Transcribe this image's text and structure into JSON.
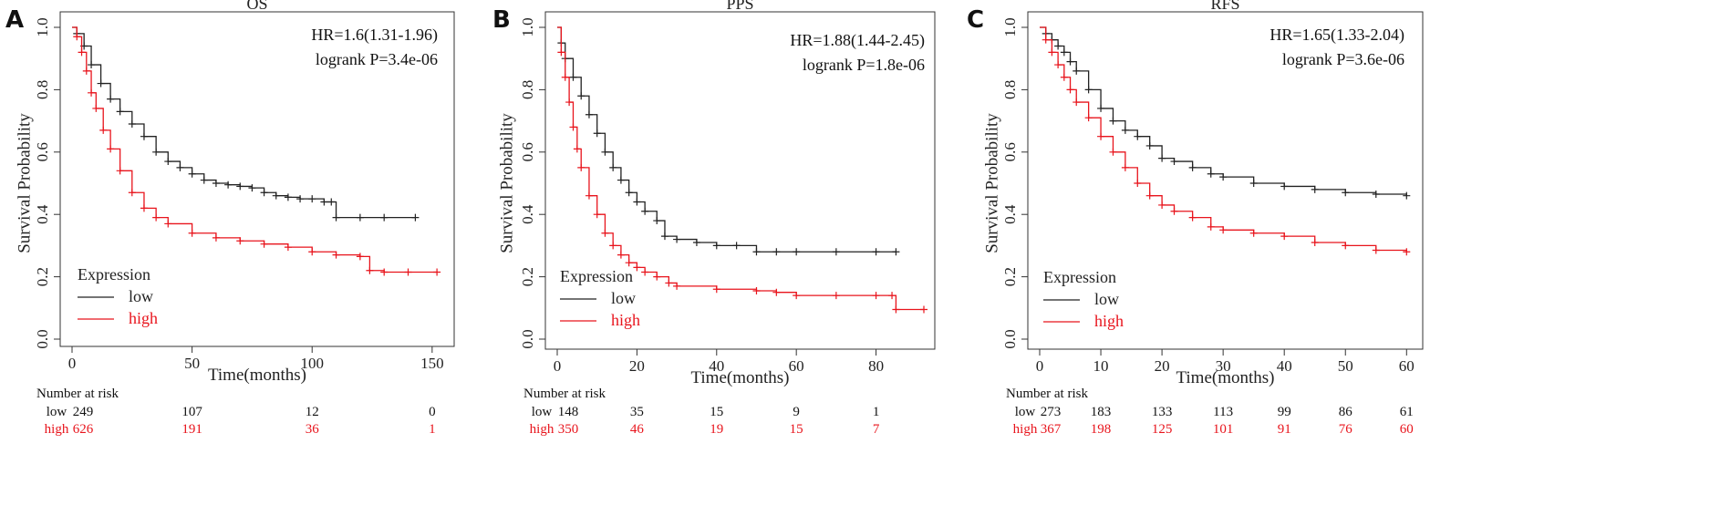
{
  "chart_data": [
    {
      "type": "line",
      "panel": "A",
      "title": "OS",
      "xlabel": "Time(months)",
      "ylabel": "Survival Probability",
      "xlim": [
        0,
        155
      ],
      "ylim": [
        0,
        1
      ],
      "xticks": [
        0,
        50,
        100,
        150
      ],
      "yticks": [
        0.0,
        0.2,
        0.4,
        0.6,
        0.8,
        1.0
      ],
      "ytick_labels": [
        "0.0",
        "0.2",
        "0.4",
        "0.6",
        "0.8",
        "1.0"
      ],
      "hr": "HR=1.6(1.31-1.96)",
      "logrank": "logrank P=3.4e-06",
      "legend_title": "Expression",
      "legend_position": "bottom-left",
      "series": [
        {
          "name": "low",
          "color": "#222222",
          "x": [
            0,
            2,
            5,
            8,
            12,
            16,
            20,
            25,
            30,
            35,
            40,
            45,
            50,
            55,
            60,
            65,
            70,
            75,
            80,
            85,
            90,
            95,
            100,
            105,
            108,
            110,
            120,
            130,
            143
          ],
          "y": [
            1.0,
            0.98,
            0.94,
            0.88,
            0.82,
            0.77,
            0.73,
            0.69,
            0.65,
            0.6,
            0.57,
            0.55,
            0.53,
            0.51,
            0.5,
            0.495,
            0.49,
            0.485,
            0.47,
            0.46,
            0.455,
            0.45,
            0.45,
            0.44,
            0.44,
            0.39,
            0.39,
            0.39,
            0.39
          ]
        },
        {
          "name": "high",
          "color": "#e8141c",
          "x": [
            0,
            2,
            4,
            6,
            8,
            10,
            13,
            16,
            20,
            25,
            30,
            35,
            40,
            50,
            60,
            70,
            80,
            90,
            100,
            110,
            120,
            124,
            130,
            140,
            152
          ],
          "y": [
            1.0,
            0.97,
            0.92,
            0.86,
            0.79,
            0.74,
            0.67,
            0.61,
            0.54,
            0.47,
            0.42,
            0.39,
            0.37,
            0.34,
            0.325,
            0.315,
            0.305,
            0.295,
            0.28,
            0.27,
            0.265,
            0.22,
            0.215,
            0.215,
            0.215
          ]
        }
      ],
      "risk_table": {
        "header": "Number at risk",
        "times": [
          0,
          50,
          100,
          150
        ],
        "rows": [
          {
            "label": "low",
            "values": [
              "249",
              "107",
              "12",
              "0"
            ]
          },
          {
            "label": "high",
            "values": [
              "626",
              "191",
              "36",
              "1"
            ]
          }
        ]
      }
    },
    {
      "type": "line",
      "panel": "B",
      "title": "PPS",
      "xlabel": "Time(months)",
      "ylabel": "Survival Probability",
      "xlim": [
        0,
        92
      ],
      "ylim": [
        0,
        1
      ],
      "xticks": [
        0,
        20,
        40,
        60,
        80
      ],
      "yticks": [
        0.0,
        0.2,
        0.4,
        0.6,
        0.8,
        1.0
      ],
      "ytick_labels": [
        "0.0",
        "0.2",
        "0.4",
        "0.6",
        "0.8",
        "1.0"
      ],
      "hr": "HR=1.88(1.44-2.45)",
      "logrank": "logrank P=1.8e-06",
      "legend_title": "Expression",
      "legend_position": "bottom-left",
      "series": [
        {
          "name": "low",
          "color": "#222222",
          "x": [
            0,
            1,
            2,
            4,
            6,
            8,
            10,
            12,
            14,
            16,
            18,
            20,
            22,
            25,
            27,
            30,
            35,
            40,
            45,
            50,
            55,
            60,
            70,
            80,
            85
          ],
          "y": [
            1.0,
            0.95,
            0.9,
            0.84,
            0.78,
            0.72,
            0.66,
            0.6,
            0.55,
            0.51,
            0.47,
            0.44,
            0.41,
            0.38,
            0.33,
            0.32,
            0.31,
            0.3,
            0.3,
            0.28,
            0.28,
            0.28,
            0.28,
            0.28,
            0.28
          ]
        },
        {
          "name": "high",
          "color": "#e8141c",
          "x": [
            0,
            1,
            2,
            3,
            4,
            5,
            6,
            8,
            10,
            12,
            14,
            16,
            18,
            20,
            22,
            25,
            28,
            30,
            40,
            50,
            55,
            60,
            70,
            80,
            84,
            85,
            92
          ],
          "y": [
            1.0,
            0.92,
            0.84,
            0.76,
            0.68,
            0.61,
            0.55,
            0.46,
            0.4,
            0.34,
            0.3,
            0.27,
            0.245,
            0.23,
            0.215,
            0.2,
            0.18,
            0.17,
            0.16,
            0.155,
            0.15,
            0.14,
            0.14,
            0.14,
            0.14,
            0.095,
            0.095
          ]
        }
      ],
      "risk_table": {
        "header": "Number at risk",
        "times": [
          0,
          20,
          40,
          60,
          80
        ],
        "rows": [
          {
            "label": "low",
            "values": [
              "148",
              "35",
              "15",
              "9",
              "1"
            ]
          },
          {
            "label": "high",
            "values": [
              "350",
              "46",
              "19",
              "15",
              "7"
            ]
          }
        ]
      }
    },
    {
      "type": "line",
      "panel": "C",
      "title": "RFS",
      "xlabel": "Time(months)",
      "ylabel": "Survival Probability",
      "xlim": [
        0,
        61
      ],
      "ylim": [
        0,
        1
      ],
      "xticks": [
        0,
        10,
        20,
        30,
        40,
        50,
        60
      ],
      "yticks": [
        0.0,
        0.2,
        0.4,
        0.6,
        0.8,
        1.0
      ],
      "ytick_labels": [
        "0.0",
        "0.2",
        "0.4",
        "0.6",
        "0.8",
        "1.0"
      ],
      "hr": "HR=1.65(1.33-2.04)",
      "logrank": "logrank P=3.6e-06",
      "legend_title": "Expression",
      "legend_position": "bottom-left",
      "series": [
        {
          "name": "low",
          "color": "#222222",
          "x": [
            0,
            1,
            2,
            3,
            4,
            5,
            6,
            8,
            10,
            12,
            14,
            16,
            18,
            20,
            22,
            25,
            28,
            30,
            35,
            40,
            45,
            50,
            55,
            60
          ],
          "y": [
            1.0,
            0.98,
            0.96,
            0.94,
            0.92,
            0.89,
            0.86,
            0.8,
            0.74,
            0.7,
            0.67,
            0.65,
            0.62,
            0.58,
            0.57,
            0.55,
            0.53,
            0.52,
            0.5,
            0.49,
            0.48,
            0.47,
            0.465,
            0.46
          ]
        },
        {
          "name": "high",
          "color": "#e8141c",
          "x": [
            0,
            1,
            2,
            3,
            4,
            5,
            6,
            8,
            10,
            12,
            14,
            16,
            18,
            20,
            22,
            25,
            28,
            30,
            35,
            40,
            45,
            50,
            55,
            60
          ],
          "y": [
            1.0,
            0.96,
            0.92,
            0.88,
            0.84,
            0.8,
            0.76,
            0.71,
            0.65,
            0.6,
            0.55,
            0.5,
            0.46,
            0.43,
            0.41,
            0.39,
            0.36,
            0.35,
            0.34,
            0.33,
            0.31,
            0.3,
            0.285,
            0.28
          ]
        }
      ],
      "risk_table": {
        "header": "Number at risk",
        "times": [
          0,
          10,
          20,
          30,
          40,
          50,
          60
        ],
        "rows": [
          {
            "label": "low",
            "values": [
              "273",
              "183",
              "133",
              "113",
              "99",
              "86",
              "61"
            ]
          },
          {
            "label": "high",
            "values": [
              "367",
              "198",
              "125",
              "101",
              "91",
              "76",
              "60"
            ]
          }
        ]
      }
    }
  ]
}
